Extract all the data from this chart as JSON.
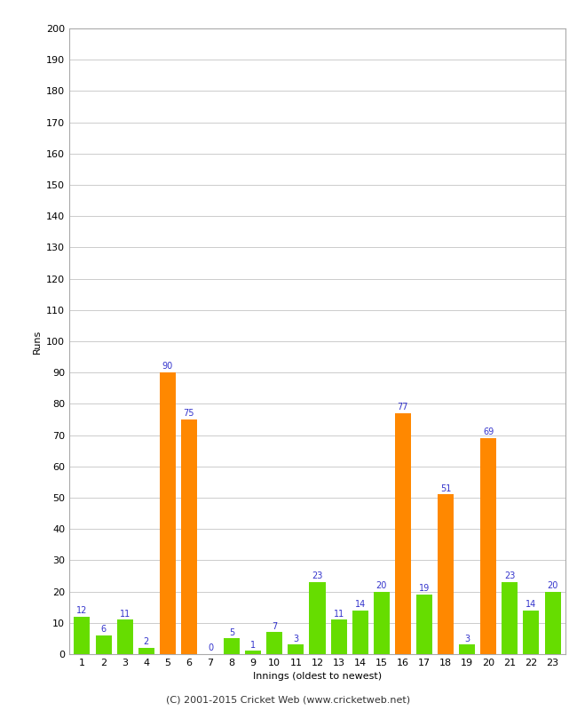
{
  "innings": [
    1,
    2,
    3,
    4,
    5,
    6,
    7,
    8,
    9,
    10,
    11,
    12,
    13,
    14,
    15,
    16,
    17,
    18,
    19,
    20,
    21,
    22,
    23
  ],
  "values": [
    12,
    6,
    11,
    2,
    90,
    75,
    0,
    5,
    1,
    7,
    3,
    23,
    11,
    14,
    20,
    77,
    19,
    51,
    3,
    69,
    23,
    14,
    20
  ],
  "orange_indices": [
    4,
    5,
    15,
    17,
    19
  ],
  "bar_color_green": "#66dd00",
  "bar_color_orange": "#ff8800",
  "label_color": "#3333cc",
  "xlabel": "Innings (oldest to newest)",
  "ylabel": "Runs",
  "ylim": [
    0,
    200
  ],
  "yticks": [
    0,
    10,
    20,
    30,
    40,
    50,
    60,
    70,
    80,
    90,
    100,
    110,
    120,
    130,
    140,
    150,
    160,
    170,
    180,
    190,
    200
  ],
  "footer": "(C) 2001-2015 Cricket Web (www.cricketweb.net)",
  "background_color": "#ffffff",
  "plot_bg_color": "#ffffff",
  "grid_color": "#cccccc",
  "border_color": "#aaaaaa"
}
